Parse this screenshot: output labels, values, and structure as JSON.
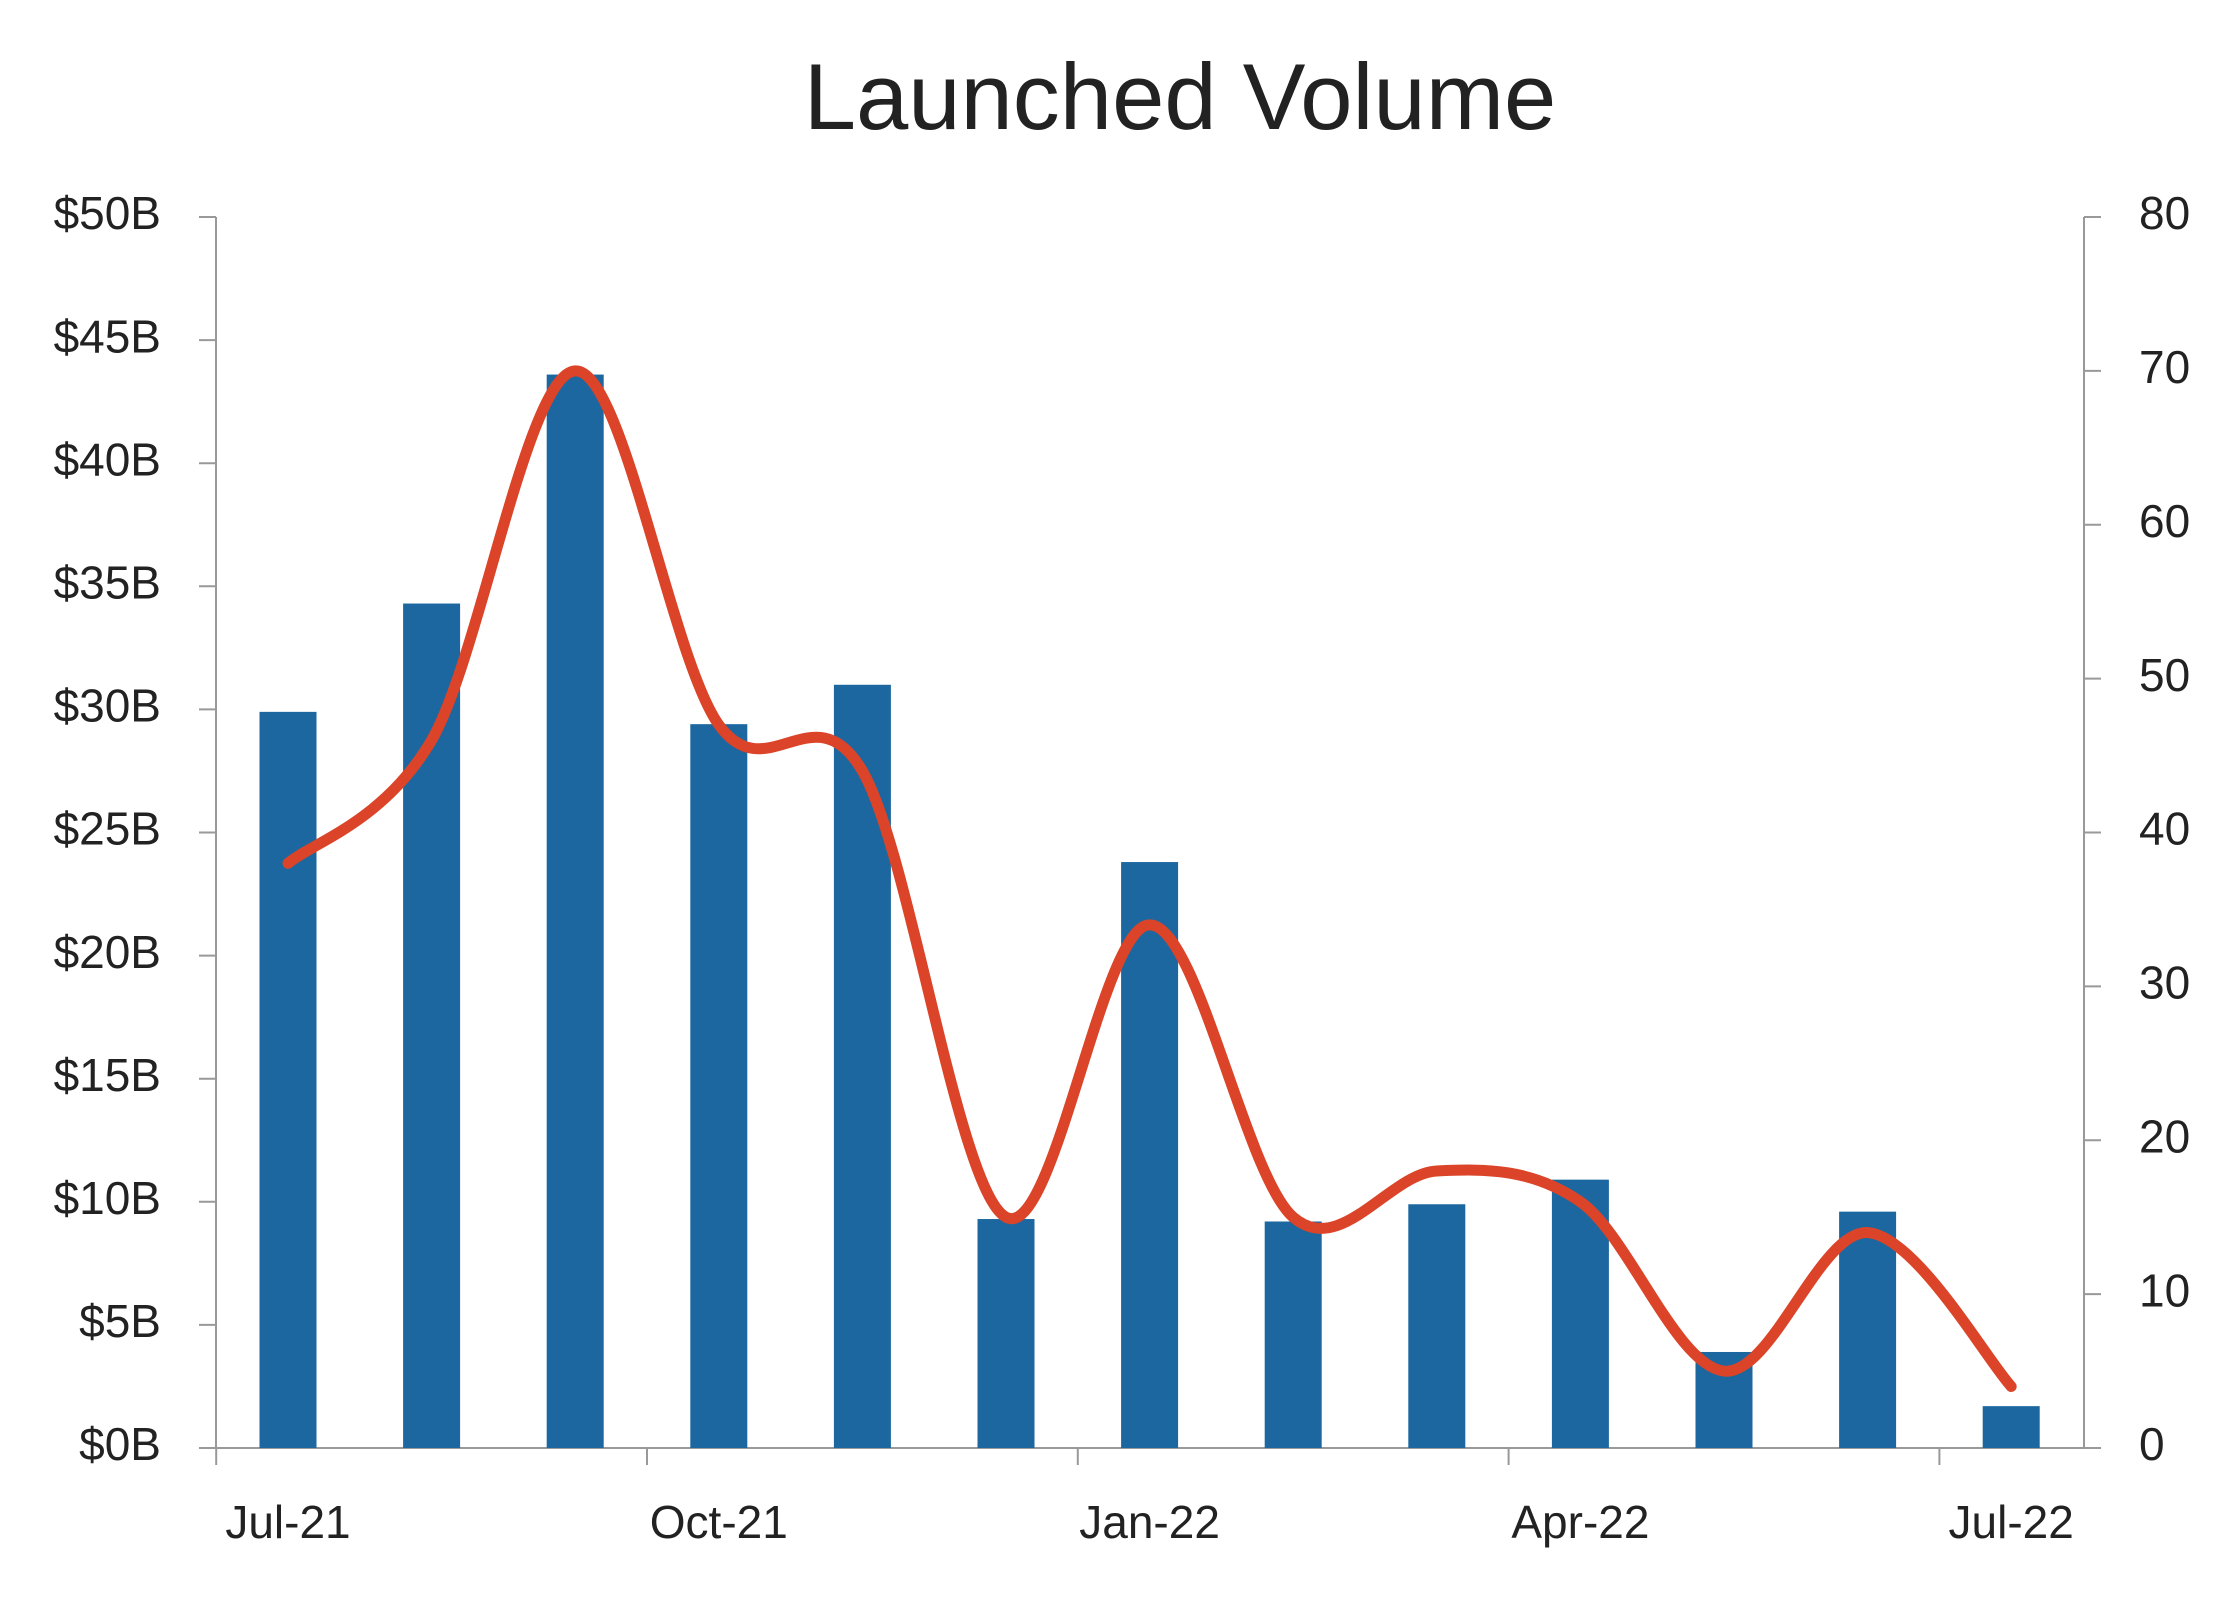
{
  "chart_data": {
    "type": "bar-line",
    "title": "Launched Volume",
    "categories": [
      "Jul-21",
      null,
      null,
      "Oct-21",
      null,
      null,
      "Jan-22",
      null,
      null,
      "Apr-22",
      null,
      null,
      "Jul-22"
    ],
    "series": [
      {
        "type": "bar",
        "color": "#1c679f",
        "axis": "y",
        "values": [
          29.9,
          34.3,
          43.6,
          29.4,
          31.0,
          9.3,
          23.8,
          9.2,
          9.9,
          10.9,
          3.9,
          9.6,
          1.7
        ]
      },
      {
        "type": "line",
        "color": "#db4428",
        "axis": "y2",
        "values": [
          38,
          46,
          70,
          47,
          44,
          15,
          34,
          15,
          18,
          16,
          5,
          14,
          4
        ]
      }
    ],
    "ylim": [
      0,
      50
    ],
    "yticks": [
      {
        "value": 0,
        "label": "$0B"
      },
      {
        "value": 5,
        "label": "$5B"
      },
      {
        "value": 10,
        "label": "$10B"
      },
      {
        "value": 15,
        "label": "$15B"
      },
      {
        "value": 20,
        "label": "$20B"
      },
      {
        "value": 25,
        "label": "$25B"
      },
      {
        "value": 30,
        "label": "$30B"
      },
      {
        "value": 35,
        "label": "$35B"
      },
      {
        "value": 40,
        "label": "$40B"
      },
      {
        "value": 45,
        "label": "$45B"
      },
      {
        "value": 50,
        "label": "$50B"
      }
    ],
    "y2lim": [
      0,
      80
    ],
    "y2ticks": [
      0,
      10,
      20,
      30,
      40,
      50,
      60,
      70,
      80
    ],
    "grid": false
  }
}
